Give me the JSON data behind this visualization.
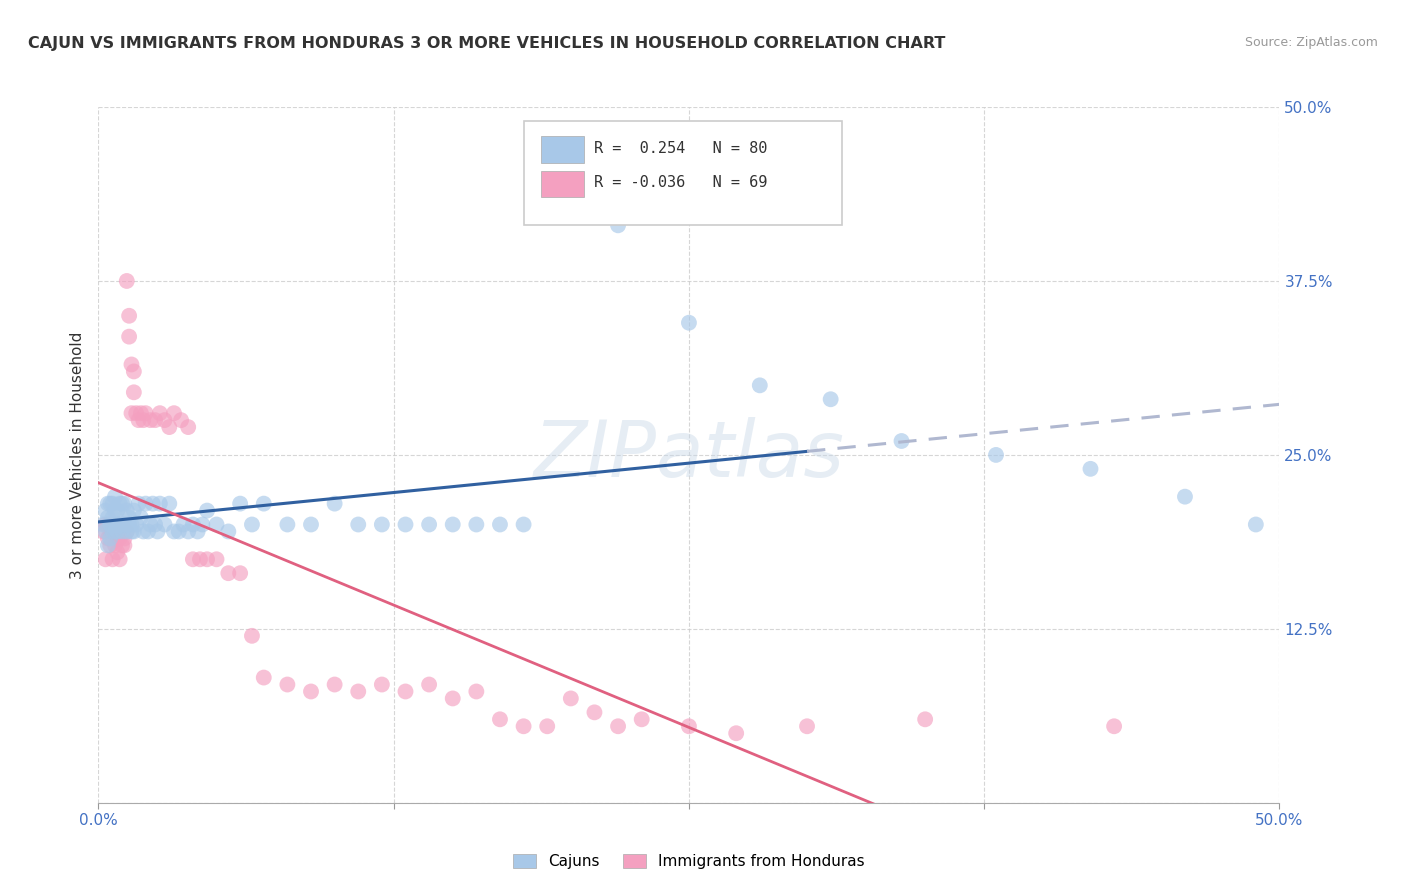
{
  "title": "CAJUN VS IMMIGRANTS FROM HONDURAS 3 OR MORE VEHICLES IN HOUSEHOLD CORRELATION CHART",
  "source": "Source: ZipAtlas.com",
  "ylabel": "3 or more Vehicles in Household",
  "x_min": 0.0,
  "x_max": 0.5,
  "y_min": 0.0,
  "y_max": 0.5,
  "x_ticks": [
    0.0,
    0.125,
    0.25,
    0.375,
    0.5
  ],
  "y_ticks": [
    0.0,
    0.125,
    0.25,
    0.375,
    0.5
  ],
  "cajun_color": "#a8c8e8",
  "honduras_color": "#f4a0c0",
  "trendline_cajun_color": "#3060a0",
  "trendline_honduras_color": "#e06080",
  "trendline_ext_color": "#b0b8d0",
  "background_color": "#ffffff",
  "grid_color": "#cccccc",
  "watermark": "ZIPatlas",
  "cajun_label": "Cajuns",
  "honduras_label": "Immigrants from Honduras",
  "legend_text_1": "R =  0.254   N = 80",
  "legend_text_2": "R = -0.036   N = 69",
  "cajun_points_x": [
    0.002,
    0.003,
    0.003,
    0.004,
    0.004,
    0.004,
    0.005,
    0.005,
    0.005,
    0.006,
    0.006,
    0.006,
    0.007,
    0.007,
    0.007,
    0.008,
    0.008,
    0.008,
    0.009,
    0.009,
    0.01,
    0.01,
    0.01,
    0.011,
    0.011,
    0.012,
    0.012,
    0.013,
    0.013,
    0.014,
    0.014,
    0.015,
    0.015,
    0.016,
    0.017,
    0.018,
    0.019,
    0.02,
    0.021,
    0.022,
    0.023,
    0.024,
    0.025,
    0.026,
    0.028,
    0.03,
    0.032,
    0.034,
    0.036,
    0.038,
    0.04,
    0.042,
    0.044,
    0.046,
    0.05,
    0.055,
    0.06,
    0.065,
    0.07,
    0.08,
    0.09,
    0.1,
    0.11,
    0.12,
    0.13,
    0.14,
    0.15,
    0.16,
    0.17,
    0.18,
    0.2,
    0.22,
    0.25,
    0.28,
    0.31,
    0.34,
    0.38,
    0.42,
    0.46,
    0.49
  ],
  "cajun_points_y": [
    0.2,
    0.195,
    0.21,
    0.185,
    0.205,
    0.215,
    0.19,
    0.2,
    0.215,
    0.195,
    0.205,
    0.215,
    0.195,
    0.21,
    0.22,
    0.2,
    0.21,
    0.195,
    0.2,
    0.215,
    0.2,
    0.215,
    0.195,
    0.2,
    0.215,
    0.195,
    0.21,
    0.2,
    0.205,
    0.195,
    0.2,
    0.21,
    0.195,
    0.2,
    0.215,
    0.205,
    0.195,
    0.215,
    0.195,
    0.2,
    0.215,
    0.2,
    0.195,
    0.215,
    0.2,
    0.215,
    0.195,
    0.195,
    0.2,
    0.195,
    0.2,
    0.195,
    0.2,
    0.21,
    0.2,
    0.195,
    0.215,
    0.2,
    0.215,
    0.2,
    0.2,
    0.215,
    0.2,
    0.2,
    0.2,
    0.2,
    0.2,
    0.2,
    0.2,
    0.2,
    0.43,
    0.415,
    0.345,
    0.3,
    0.29,
    0.26,
    0.25,
    0.24,
    0.22,
    0.2
  ],
  "honduras_points_x": [
    0.002,
    0.003,
    0.003,
    0.004,
    0.004,
    0.005,
    0.005,
    0.006,
    0.006,
    0.007,
    0.007,
    0.008,
    0.008,
    0.009,
    0.009,
    0.01,
    0.01,
    0.011,
    0.011,
    0.012,
    0.012,
    0.013,
    0.013,
    0.014,
    0.014,
    0.015,
    0.015,
    0.016,
    0.017,
    0.018,
    0.019,
    0.02,
    0.022,
    0.024,
    0.026,
    0.028,
    0.03,
    0.032,
    0.035,
    0.038,
    0.04,
    0.043,
    0.046,
    0.05,
    0.055,
    0.06,
    0.065,
    0.07,
    0.08,
    0.09,
    0.1,
    0.11,
    0.12,
    0.13,
    0.14,
    0.15,
    0.16,
    0.17,
    0.18,
    0.19,
    0.2,
    0.21,
    0.22,
    0.23,
    0.25,
    0.27,
    0.3,
    0.35,
    0.43
  ],
  "honduras_points_y": [
    0.195,
    0.2,
    0.175,
    0.19,
    0.2,
    0.185,
    0.195,
    0.175,
    0.195,
    0.185,
    0.195,
    0.18,
    0.19,
    0.175,
    0.19,
    0.185,
    0.2,
    0.185,
    0.19,
    0.195,
    0.375,
    0.35,
    0.335,
    0.315,
    0.28,
    0.31,
    0.295,
    0.28,
    0.275,
    0.28,
    0.275,
    0.28,
    0.275,
    0.275,
    0.28,
    0.275,
    0.27,
    0.28,
    0.275,
    0.27,
    0.175,
    0.175,
    0.175,
    0.175,
    0.165,
    0.165,
    0.12,
    0.09,
    0.085,
    0.08,
    0.085,
    0.08,
    0.085,
    0.08,
    0.085,
    0.075,
    0.08,
    0.06,
    0.055,
    0.055,
    0.075,
    0.065,
    0.055,
    0.06,
    0.055,
    0.05,
    0.055,
    0.06,
    0.055
  ]
}
